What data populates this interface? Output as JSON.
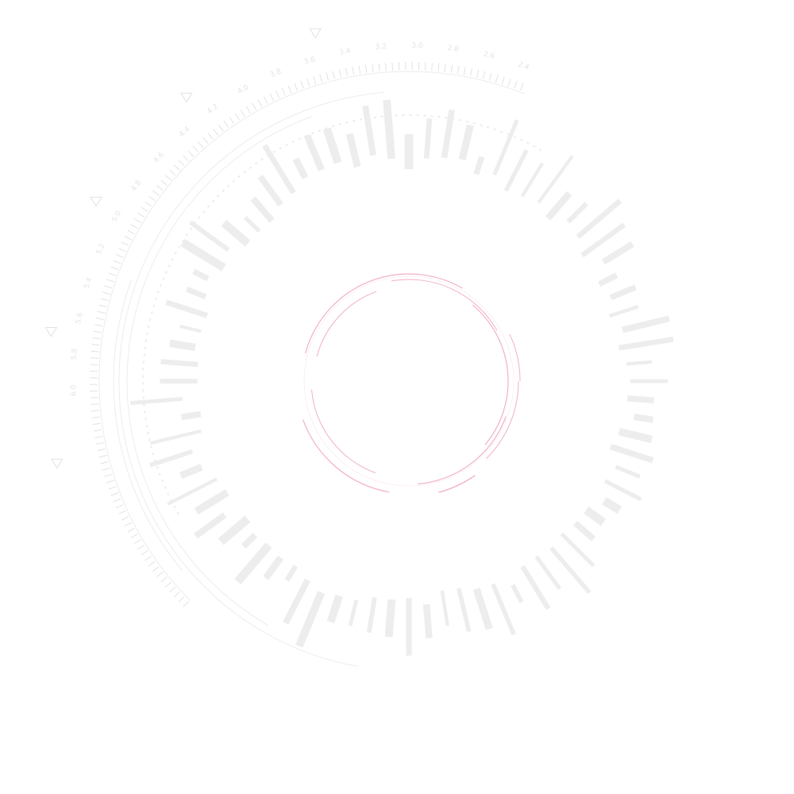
{
  "colors": {
    "background": "#ffffff",
    "accent": "#f0a7bf",
    "accent_soft": "#f7cbd9",
    "ring_faint": "#ececec",
    "ring_mid": "#e2e2e2",
    "text_faint": "#e4e4e4"
  },
  "hud": {
    "scale_labels": [
      "2.4",
      "2.6",
      "2.8",
      "3.0",
      "3.2",
      "3.4",
      "3.6",
      "3.8",
      "4.0",
      "4.2",
      "4.4",
      "4.6",
      "4.8",
      "5.0",
      "5.2",
      "5.4",
      "5.6",
      "5.8",
      "6.0"
    ],
    "marker_icon": "triangle-marker-icon",
    "center_icon": "segmented-target-ring-icon"
  }
}
